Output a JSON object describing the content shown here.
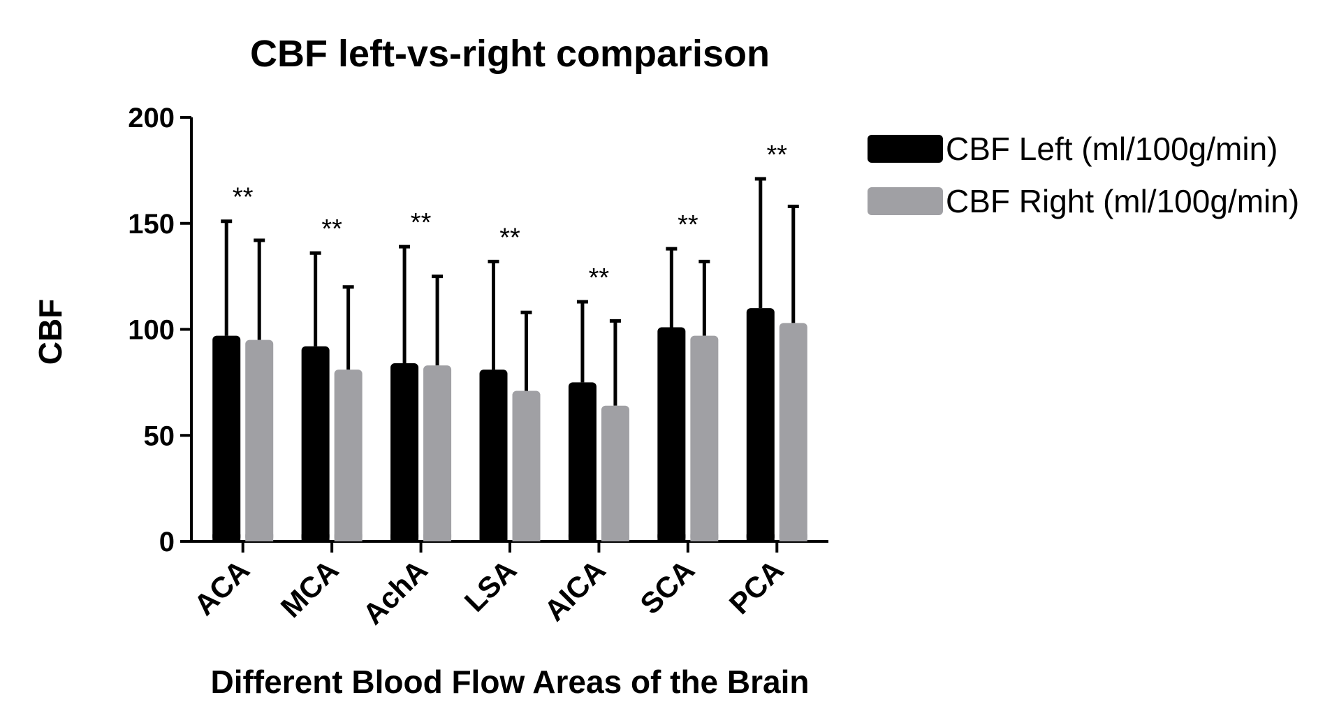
{
  "chart_data": {
    "type": "bar",
    "title": "CBF left-vs-right comparison",
    "xlabel": "Different Blood Flow Areas of the Brain",
    "ylabel": "CBF",
    "ylim": [
      0,
      200
    ],
    "yticks": [
      0,
      50,
      100,
      150,
      200
    ],
    "categories": [
      "ACA",
      "MCA",
      "AchA",
      "LSA",
      "AICA",
      "SCA",
      "PCA"
    ],
    "series": [
      {
        "name": "CBF Left (ml/100g/min)",
        "color": "#000000",
        "values": [
          97,
          92,
          84,
          81,
          75,
          101,
          110
        ],
        "error": [
          54,
          44,
          55,
          51,
          38,
          37,
          61
        ]
      },
      {
        "name": "CBF Right (ml/100g/min)",
        "color": "#a0a0a4",
        "values": [
          95,
          81,
          83,
          71,
          64,
          97,
          103
        ],
        "error": [
          47,
          39,
          42,
          37,
          40,
          35,
          55
        ]
      }
    ],
    "annotations": [
      "**",
      "**",
      "**",
      "**",
      "**",
      "**",
      "**"
    ],
    "grid": false,
    "legend": "top-right"
  }
}
